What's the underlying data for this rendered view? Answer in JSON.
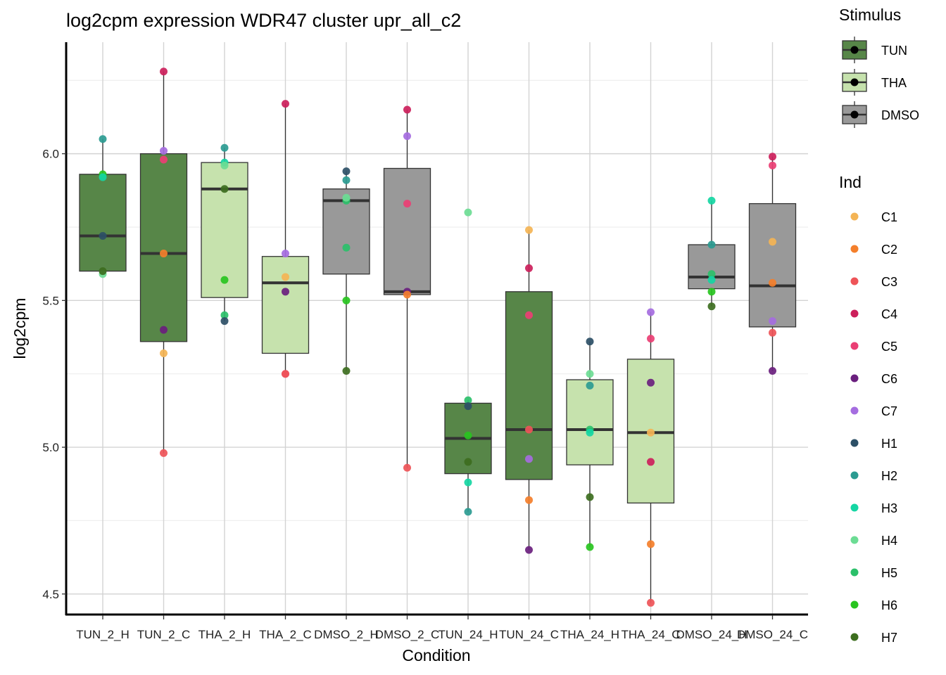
{
  "chart_data": {
    "type": "box",
    "title": "log2cpm expression WDR47 cluster upr_all_c2",
    "xlabel": "Condition",
    "ylabel": "log2cpm",
    "ylim": [
      4.43,
      6.38
    ],
    "yticks": [
      4.5,
      5.0,
      5.5,
      6.0
    ],
    "ytick_labels": [
      "4.5",
      "5.0",
      "5.5",
      "6.0"
    ],
    "categories": [
      "TUN_2_H",
      "TUN_2_C",
      "THA_2_H",
      "THA_2_C",
      "DMSO_2_H",
      "DMSO_2_C",
      "TUN_24_H",
      "TUN_24_C",
      "THA_24_H",
      "THA_24_C",
      "DMSO_24_H",
      "DMSO_24_C"
    ],
    "stimulus_of_category": [
      "TUN",
      "TUN",
      "THA",
      "THA",
      "DMSO",
      "DMSO",
      "TUN",
      "TUN",
      "THA",
      "THA",
      "DMSO",
      "DMSO"
    ],
    "boxes": [
      {
        "q1": 5.6,
        "median": 5.72,
        "q3": 5.93,
        "whisker_low": 5.59,
        "whisker_high": 6.05
      },
      {
        "q1": 5.36,
        "median": 5.66,
        "q3": 6.0,
        "whisker_low": 4.98,
        "whisker_high": 6.28
      },
      {
        "q1": 5.51,
        "median": 5.88,
        "q3": 5.97,
        "whisker_low": 5.43,
        "whisker_high": 6.02
      },
      {
        "q1": 5.32,
        "median": 5.56,
        "q3": 5.65,
        "whisker_low": 5.25,
        "whisker_high": 6.17
      },
      {
        "q1": 5.59,
        "median": 5.84,
        "q3": 5.88,
        "whisker_low": 5.26,
        "whisker_high": 5.94
      },
      {
        "q1": 5.52,
        "median": 5.53,
        "q3": 5.95,
        "whisker_low": 4.93,
        "whisker_high": 6.15
      },
      {
        "q1": 4.91,
        "median": 5.03,
        "q3": 5.15,
        "whisker_low": 4.78,
        "whisker_high": 5.16
      },
      {
        "q1": 4.89,
        "median": 5.06,
        "q3": 5.53,
        "whisker_low": 4.65,
        "whisker_high": 5.74
      },
      {
        "q1": 4.94,
        "median": 5.06,
        "q3": 5.23,
        "whisker_low": 4.66,
        "whisker_high": 5.36
      },
      {
        "q1": 4.81,
        "median": 5.05,
        "q3": 5.3,
        "whisker_low": 4.47,
        "whisker_high": 5.46
      },
      {
        "q1": 5.54,
        "median": 5.58,
        "q3": 5.69,
        "whisker_low": 5.48,
        "whisker_high": 5.84
      },
      {
        "q1": 5.41,
        "median": 5.55,
        "q3": 5.83,
        "whisker_low": 5.26,
        "whisker_high": 5.99
      }
    ],
    "points": [
      [
        [
          "H2",
          6.05
        ],
        [
          "H6",
          5.93
        ],
        [
          "H3",
          5.92
        ],
        [
          "H1",
          5.72
        ],
        [
          "H4",
          5.59
        ],
        [
          "H7",
          5.6
        ]
      ],
      [
        [
          "C4",
          6.28
        ],
        [
          "C7",
          6.01
        ],
        [
          "C5",
          5.98
        ],
        [
          "C2",
          5.66
        ],
        [
          "C6",
          5.4
        ],
        [
          "C1",
          5.32
        ],
        [
          "C3",
          4.98
        ]
      ],
      [
        [
          "H2",
          6.02
        ],
        [
          "H3",
          5.97
        ],
        [
          "H4",
          5.96
        ],
        [
          "H7",
          5.88
        ],
        [
          "H6",
          5.57
        ],
        [
          "H5",
          5.45
        ],
        [
          "H1",
          5.43
        ]
      ],
      [
        [
          "C4",
          6.17
        ],
        [
          "C7",
          5.66
        ],
        [
          "C1",
          5.58
        ],
        [
          "C6",
          5.53
        ],
        [
          "C5",
          5.25
        ],
        [
          "C3",
          5.25
        ]
      ],
      [
        [
          "H1",
          5.94
        ],
        [
          "H2",
          5.91
        ],
        [
          "H5",
          5.84
        ],
        [
          "H4",
          5.85
        ],
        [
          "H5",
          5.68
        ],
        [
          "H6",
          5.5
        ],
        [
          "H7",
          5.26
        ]
      ],
      [
        [
          "C4",
          6.15
        ],
        [
          "C7",
          6.06
        ],
        [
          "C5",
          5.83
        ],
        [
          "C6",
          5.53
        ],
        [
          "C2",
          5.52
        ],
        [
          "C3",
          4.93
        ]
      ],
      [
        [
          "H4",
          5.8
        ],
        [
          "H5",
          5.16
        ],
        [
          "H1",
          5.14
        ],
        [
          "H6",
          5.04
        ],
        [
          "H7",
          4.95
        ],
        [
          "H3",
          4.88
        ],
        [
          "H2",
          4.78
        ]
      ],
      [
        [
          "C1",
          5.74
        ],
        [
          "C4",
          5.61
        ],
        [
          "C5",
          5.45
        ],
        [
          "C3",
          5.06
        ],
        [
          "C7",
          4.96
        ],
        [
          "C2",
          4.82
        ],
        [
          "C6",
          4.65
        ]
      ],
      [
        [
          "H1",
          5.36
        ],
        [
          "H4",
          5.25
        ],
        [
          "H2",
          5.21
        ],
        [
          "H5",
          5.06
        ],
        [
          "H3",
          5.05
        ],
        [
          "H7",
          4.83
        ],
        [
          "H6",
          4.66
        ]
      ],
      [
        [
          "C7",
          5.46
        ],
        [
          "C5",
          5.37
        ],
        [
          "C6",
          5.22
        ],
        [
          "C1",
          5.05
        ],
        [
          "C4",
          4.95
        ],
        [
          "C2",
          4.67
        ],
        [
          "C3",
          4.47
        ]
      ],
      [
        [
          "H3",
          5.84
        ],
        [
          "H2",
          5.69
        ],
        [
          "H5",
          5.59
        ],
        [
          "H3",
          5.57
        ],
        [
          "H6",
          5.53
        ],
        [
          "H7",
          5.48
        ]
      ],
      [
        [
          "C4",
          5.99
        ],
        [
          "C5",
          5.96
        ],
        [
          "C1",
          5.7
        ],
        [
          "C2",
          5.56
        ],
        [
          "C7",
          5.43
        ],
        [
          "C3",
          5.39
        ],
        [
          "C6",
          5.26
        ]
      ]
    ],
    "legend_stimulus": {
      "title": "Stimulus",
      "entries": [
        {
          "label": "TUN",
          "color": "#578648"
        },
        {
          "label": "THA",
          "color": "#c6e2ad"
        },
        {
          "label": "DMSO",
          "color": "#999999"
        }
      ]
    },
    "legend_ind": {
      "title": "Ind",
      "entries": [
        {
          "label": "C1",
          "color": "#f4b455"
        },
        {
          "label": "C2",
          "color": "#f47f2b"
        },
        {
          "label": "C3",
          "color": "#ee5458"
        },
        {
          "label": "C4",
          "color": "#cc1f5b"
        },
        {
          "label": "C5",
          "color": "#ea3f74"
        },
        {
          "label": "C6",
          "color": "#6a1f7e"
        },
        {
          "label": "C7",
          "color": "#a56de0"
        },
        {
          "label": "H1",
          "color": "#2c4f66"
        },
        {
          "label": "H2",
          "color": "#2b9b91"
        },
        {
          "label": "H3",
          "color": "#15d6a3"
        },
        {
          "label": "H4",
          "color": "#6cdc94"
        },
        {
          "label": "H5",
          "color": "#2bc06a"
        },
        {
          "label": "H6",
          "color": "#28c41f"
        },
        {
          "label": "H7",
          "color": "#3d6e1f"
        }
      ]
    }
  }
}
